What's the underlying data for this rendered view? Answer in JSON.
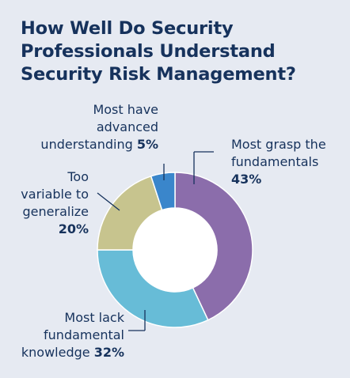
{
  "chart_data": {
    "type": "pie",
    "variant": "donut",
    "title_lines": [
      "How Well Do Security",
      "Professionals Understand",
      "Security Risk Management?"
    ],
    "slices": [
      {
        "label_lines": [
          "Most grasp the",
          "fundamentals"
        ],
        "value": 43,
        "value_label": "43%",
        "color": "#8b6dab"
      },
      {
        "label_lines": [
          "Most lack",
          "fundamental",
          "knowledge"
        ],
        "value": 32,
        "value_label": "32%",
        "color": "#67bcd7"
      },
      {
        "label_lines": [
          "Too",
          "variable to",
          "generalize"
        ],
        "value": 20,
        "value_label": "20%",
        "color": "#c7c48e"
      },
      {
        "label_lines": [
          "Most have",
          "advanced",
          "understanding"
        ],
        "value": 5,
        "value_label": "5%",
        "color": "#3a86cb"
      }
    ],
    "legend": "none",
    "background": "#e6eaf2",
    "text_color": "#16325c"
  }
}
